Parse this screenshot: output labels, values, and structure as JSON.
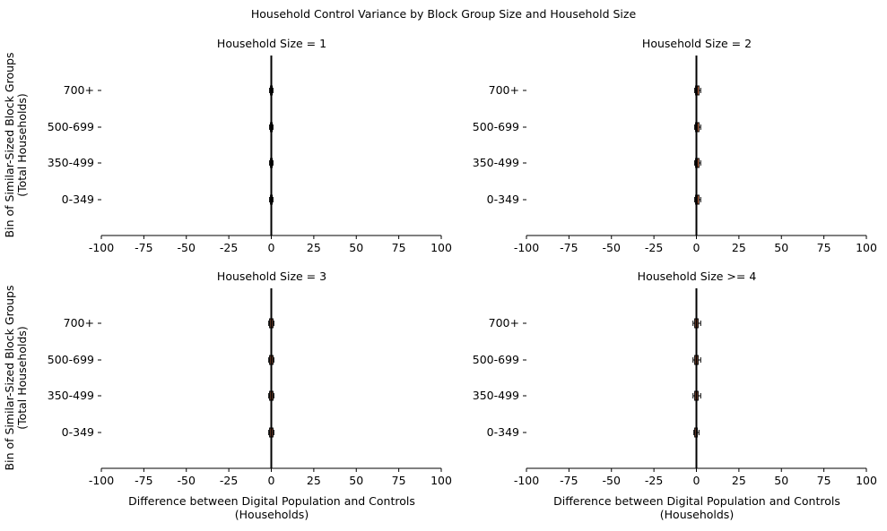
{
  "figure": {
    "title": "Household Control Variance by Block Group Size and Household Size"
  },
  "chart_data": [
    {
      "type": "box",
      "title": "Household Size = 1",
      "ylabel": "Bin of Similar-Sized Block Groups\n(Total Households)",
      "xlabel": "",
      "xlim": [
        -100,
        100
      ],
      "xticks": [
        -100,
        -75,
        -50,
        -25,
        0,
        25,
        50,
        75,
        100
      ],
      "categories": [
        "700+",
        "500-699",
        "350-499",
        "0-349"
      ],
      "boxes": [
        {
          "category": "700+",
          "whisker_low": -1.0,
          "q1": -0.5,
          "median": 0,
          "q3": 0.5,
          "whisker_high": 1.0
        },
        {
          "category": "500-699",
          "whisker_low": -1.0,
          "q1": -0.5,
          "median": 0,
          "q3": 0.5,
          "whisker_high": 1.0
        },
        {
          "category": "350-499",
          "whisker_low": -1.0,
          "q1": -0.5,
          "median": 0,
          "q3": 0.5,
          "whisker_high": 1.0
        },
        {
          "category": "0-349",
          "whisker_low": -1.0,
          "q1": -0.5,
          "median": 0,
          "q3": 0.5,
          "whisker_high": 1.0
        }
      ],
      "reference_line": 0
    },
    {
      "type": "box",
      "title": "Household Size = 2",
      "ylabel": "",
      "xlabel": "",
      "xlim": [
        -100,
        100
      ],
      "xticks": [
        -100,
        -75,
        -50,
        -25,
        0,
        25,
        50,
        75,
        100
      ],
      "categories": [
        "700+",
        "500-699",
        "350-499",
        "0-349"
      ],
      "boxes": [
        {
          "category": "700+",
          "whisker_low": -1.0,
          "q1": -0.5,
          "median": 0.5,
          "q3": 1.5,
          "whisker_high": 2.5
        },
        {
          "category": "500-699",
          "whisker_low": -1.0,
          "q1": -0.5,
          "median": 0.5,
          "q3": 1.5,
          "whisker_high": 2.5
        },
        {
          "category": "350-499",
          "whisker_low": -1.0,
          "q1": -0.5,
          "median": 0.5,
          "q3": 1.5,
          "whisker_high": 2.5
        },
        {
          "category": "0-349",
          "whisker_low": -1.0,
          "q1": -0.5,
          "median": 0.5,
          "q3": 1.5,
          "whisker_high": 2.5
        }
      ],
      "reference_line": 0
    },
    {
      "type": "box",
      "title": "Household Size = 3",
      "ylabel": "Bin of Similar-Sized Block Groups\n(Total Households)",
      "xlabel": "Difference between Digital Population and Controls\n(Households)",
      "xlim": [
        -100,
        100
      ],
      "xticks": [
        -100,
        -75,
        -50,
        -25,
        0,
        25,
        50,
        75,
        100
      ],
      "categories": [
        "700+",
        "500-699",
        "350-499",
        "0-349"
      ],
      "boxes": [
        {
          "category": "700+",
          "whisker_low": -1.5,
          "q1": -1.0,
          "median": 0,
          "q3": 1.0,
          "whisker_high": 1.5
        },
        {
          "category": "500-699",
          "whisker_low": -1.5,
          "q1": -1.0,
          "median": 0,
          "q3": 1.0,
          "whisker_high": 1.5
        },
        {
          "category": "350-499",
          "whisker_low": -1.5,
          "q1": -1.0,
          "median": 0,
          "q3": 1.0,
          "whisker_high": 1.5
        },
        {
          "category": "0-349",
          "whisker_low": -1.5,
          "q1": -1.0,
          "median": 0,
          "q3": 1.0,
          "whisker_high": 1.5
        }
      ],
      "reference_line": 0
    },
    {
      "type": "box",
      "title": "Household Size >= 4",
      "ylabel": "",
      "xlabel": "Difference between Digital Population and Controls\n(Households)",
      "xlim": [
        -100,
        100
      ],
      "xticks": [
        -100,
        -75,
        -50,
        -25,
        0,
        25,
        50,
        75,
        100
      ],
      "categories": [
        "700+",
        "500-699",
        "350-499",
        "0-349"
      ],
      "boxes": [
        {
          "category": "700+",
          "whisker_low": -2.0,
          "q1": -1.0,
          "median": 0,
          "q3": 1.0,
          "whisker_high": 2.5
        },
        {
          "category": "500-699",
          "whisker_low": -2.0,
          "q1": -1.0,
          "median": 0,
          "q3": 1.0,
          "whisker_high": 2.5
        },
        {
          "category": "350-499",
          "whisker_low": -2.0,
          "q1": -1.0,
          "median": 0,
          "q3": 1.0,
          "whisker_high": 2.5
        },
        {
          "category": "0-349",
          "whisker_low": -1.5,
          "q1": -1.0,
          "median": 0,
          "q3": 0.5,
          "whisker_high": 1.5
        }
      ],
      "reference_line": 0
    }
  ],
  "style": {
    "box_fill": "#e07b4f",
    "box_edge": "#000000",
    "reference_line_color": "#000000",
    "axis_color": "#000000"
  }
}
